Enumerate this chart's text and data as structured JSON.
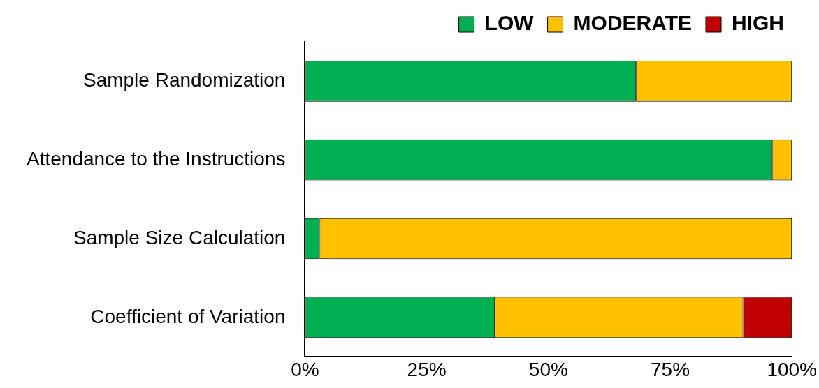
{
  "chart_data": {
    "type": "bar",
    "orientation": "horizontal",
    "stacked": true,
    "categories": [
      "Sample Randomization",
      "Attendance to the Instructions",
      "Sample Size Calculation",
      "Coefficient of Variation"
    ],
    "series": [
      {
        "name": "LOW",
        "color": "#00b050",
        "values": [
          68,
          96,
          3,
          39
        ]
      },
      {
        "name": "MODERATE",
        "color": "#ffc000",
        "values": [
          32,
          4,
          97,
          51
        ]
      },
      {
        "name": "HIGH",
        "color": "#c00000",
        "values": [
          0,
          0,
          0,
          10
        ]
      }
    ],
    "xlim": [
      0,
      100
    ],
    "xticks": [
      {
        "value": 0,
        "label": "0%"
      },
      {
        "value": 25,
        "label": "25%"
      },
      {
        "value": 50,
        "label": "50%"
      },
      {
        "value": 75,
        "label": "75%"
      },
      {
        "value": 100,
        "label": "100%"
      }
    ],
    "grid": false,
    "legend": "top right"
  }
}
